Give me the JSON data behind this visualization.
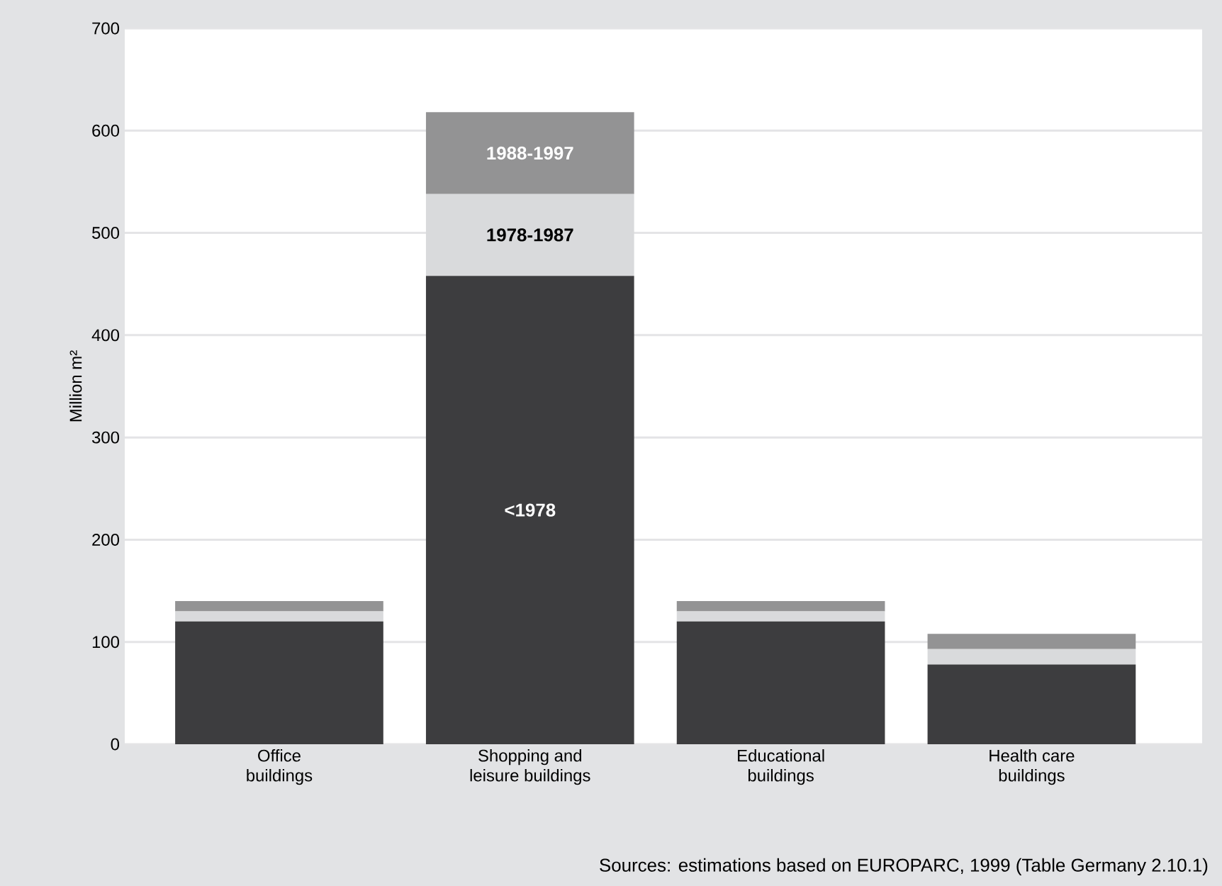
{
  "chart_data": {
    "type": "bar",
    "stacked": true,
    "categories": [
      "Office\nbuildings",
      "Shopping and\nleisure buildings",
      "Educational\nbuildings",
      "Health care\nbuildings"
    ],
    "series": [
      {
        "name": "<1978",
        "color": "#3d3d3f",
        "values": [
          120,
          458,
          120,
          78
        ]
      },
      {
        "name": "1978-1987",
        "color": "#d9dadc",
        "values": [
          10,
          80,
          10,
          15
        ]
      },
      {
        "name": "1988-1997",
        "color": "#939394",
        "values": [
          10,
          80,
          10,
          15
        ]
      }
    ],
    "ylabel": "Million m²",
    "ylim": [
      0,
      700
    ],
    "yticks": [
      0,
      100,
      200,
      300,
      400,
      500,
      600,
      700
    ],
    "grid": "y",
    "annotations": [
      "Sources: estimations based on EUROPARC, 1999 (Table Germany 2.10.1)"
    ]
  }
}
